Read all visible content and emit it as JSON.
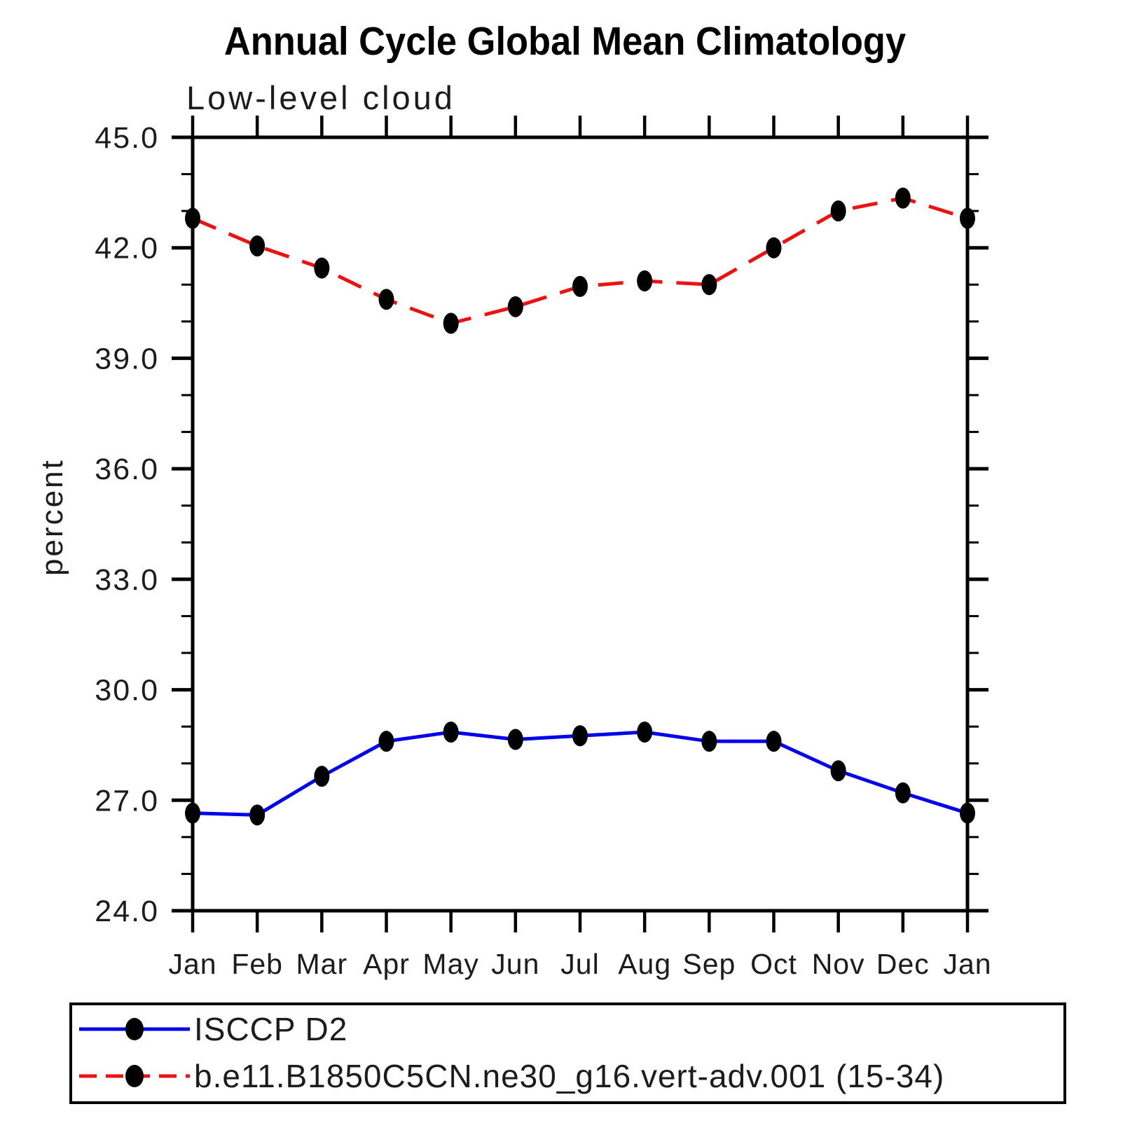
{
  "title": "Annual Cycle Global Mean Climatology",
  "subtitle": "Low-level cloud",
  "y_axis_label": "percent",
  "chart_data": {
    "type": "line",
    "title": "Annual Cycle Global Mean Climatology",
    "subtitle": "Low-level cloud",
    "ylabel": "percent",
    "xlabel": "",
    "categories": [
      "Jan",
      "Feb",
      "Mar",
      "Apr",
      "May",
      "Jun",
      "Jul",
      "Aug",
      "Sep",
      "Oct",
      "Nov",
      "Dec",
      "Jan"
    ],
    "series": [
      {
        "name": "ISCCP D2",
        "color": "#0000EE",
        "line_style": "solid",
        "marker": "filled-ellipse",
        "values": [
          26.65,
          26.6,
          27.65,
          28.6,
          28.85,
          28.65,
          28.75,
          28.85,
          28.6,
          28.6,
          27.8,
          27.2,
          26.65
        ]
      },
      {
        "name": "b.e11.B1850C5CN.ne30_g16.vert-adv.001 (15-34)",
        "color": "#EE1111",
        "line_style": "dashed",
        "marker": "filled-ellipse",
        "values": [
          42.8,
          42.05,
          41.45,
          40.6,
          39.95,
          40.4,
          40.95,
          41.1,
          41.0,
          42.0,
          43.0,
          43.35,
          42.8
        ]
      }
    ],
    "ylim": [
      24.0,
      45.0
    ],
    "y_major_ticks": [
      45.0,
      42.0,
      39.0,
      36.0,
      33.0,
      30.0,
      27.0,
      24.0
    ],
    "y_major_tick_labels": [
      "45.0",
      "42.0",
      "39.0",
      "36.0",
      "33.0",
      "30.0",
      "27.0",
      "24.0"
    ],
    "y_minor_tick_interval": 1.0,
    "grid": false,
    "legend_position": "bottom-left",
    "marker_color": "#000000",
    "axis_color": "#000000"
  }
}
